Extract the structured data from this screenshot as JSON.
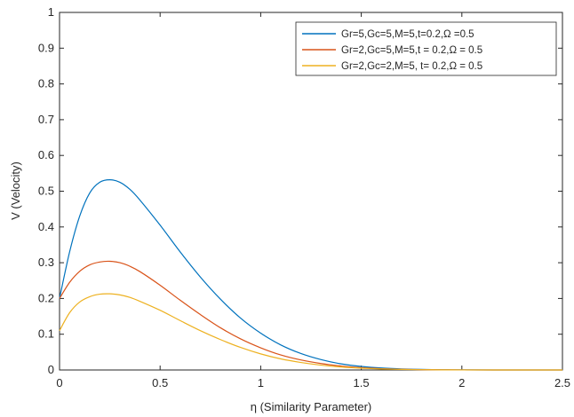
{
  "chart_data": {
    "type": "line",
    "title": "",
    "xlabel": "η  (Similarity Parameter)",
    "ylabel": "V (Velocity)",
    "xlim": [
      0,
      2.5
    ],
    "ylim": [
      0,
      1
    ],
    "xticks": [
      "0",
      "0.5",
      "1",
      "1.5",
      "2",
      "2.5"
    ],
    "yticks": [
      "0",
      "0.1",
      "0.2",
      "0.3",
      "0.4",
      "0.5",
      "0.6",
      "0.7",
      "0.8",
      "0.9",
      "1"
    ],
    "grid": false,
    "legend_position": "top-right",
    "x": [
      0,
      0.05,
      0.1,
      0.15,
      0.2,
      0.25,
      0.3,
      0.35,
      0.4,
      0.5,
      0.6,
      0.7,
      0.8,
      0.9,
      1.0,
      1.1,
      1.2,
      1.3,
      1.4,
      1.5,
      1.6,
      1.7,
      1.8,
      1.9,
      2.0,
      2.25,
      2.5
    ],
    "series": [
      {
        "name": "Gr=5,Gc=5,M=5,t=0.2,Ω =0.5",
        "color": "#0072BD",
        "values": [
          0.2,
          0.33,
          0.43,
          0.495,
          0.525,
          0.532,
          0.525,
          0.505,
          0.475,
          0.405,
          0.33,
          0.26,
          0.198,
          0.145,
          0.103,
          0.07,
          0.046,
          0.029,
          0.017,
          0.01,
          0.0055,
          0.003,
          0.0015,
          0.0007,
          0.0003,
          0.0,
          0.0
        ]
      },
      {
        "name": "Gr=2,Gc=5,M=5,t = 0.2,Ω = 0.5",
        "color": "#D95319",
        "values": [
          0.2,
          0.245,
          0.276,
          0.294,
          0.302,
          0.304,
          0.3,
          0.29,
          0.275,
          0.237,
          0.195,
          0.155,
          0.118,
          0.087,
          0.062,
          0.042,
          0.028,
          0.018,
          0.011,
          0.0065,
          0.0036,
          0.002,
          0.001,
          0.0005,
          0.0002,
          0.0,
          0.0
        ]
      },
      {
        "name": "Gr=2,Gc=2,M=5, t= 0.2,Ω = 0.5",
        "color": "#EDB120",
        "values": [
          0.11,
          0.16,
          0.19,
          0.205,
          0.212,
          0.213,
          0.21,
          0.203,
          0.192,
          0.167,
          0.138,
          0.11,
          0.085,
          0.063,
          0.045,
          0.031,
          0.021,
          0.0135,
          0.0083,
          0.005,
          0.0028,
          0.0015,
          0.0008,
          0.0004,
          0.0002,
          0.0,
          0.0
        ]
      }
    ]
  }
}
